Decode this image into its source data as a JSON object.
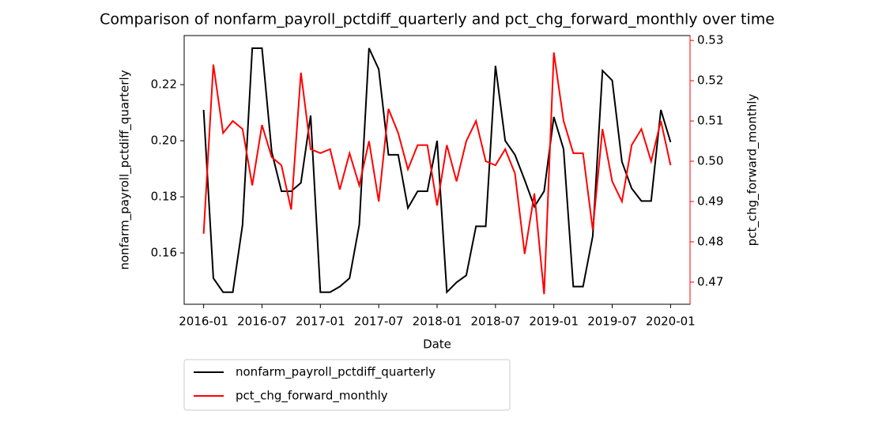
{
  "chart_data": {
    "type": "line",
    "title": "Comparison of nonfarm_payroll_pctdiff_quarterly and pct_chg_forward_monthly over time",
    "xlabel": "Date",
    "ylabel": "nonfarm_payroll_pctdiff_quarterly",
    "y2label": "pct_chg_forward_monthly",
    "x": [
      "2016-01",
      "2016-02",
      "2016-03",
      "2016-04",
      "2016-05",
      "2016-06",
      "2016-07",
      "2016-08",
      "2016-09",
      "2016-10",
      "2016-11",
      "2016-12",
      "2017-01",
      "2017-02",
      "2017-03",
      "2017-04",
      "2017-05",
      "2017-06",
      "2017-07",
      "2017-08",
      "2017-09",
      "2017-10",
      "2017-11",
      "2017-12",
      "2018-01",
      "2018-02",
      "2018-03",
      "2018-04",
      "2018-05",
      "2018-06",
      "2018-07",
      "2018-08",
      "2018-09",
      "2018-10",
      "2018-11",
      "2018-12",
      "2019-01",
      "2019-02",
      "2019-03",
      "2019-04",
      "2019-05",
      "2019-06",
      "2019-07",
      "2019-08",
      "2019-09",
      "2019-10",
      "2019-11",
      "2019-12",
      "2020-01"
    ],
    "xlim": [
      "2015-11",
      "2020-03"
    ],
    "xticks": [
      "2016-01",
      "2016-07",
      "2017-01",
      "2017-07",
      "2018-01",
      "2018-07",
      "2019-01",
      "2019-07",
      "2020-01"
    ],
    "ylim": [
      0.1417,
      0.2375
    ],
    "yticks": [
      0.16,
      0.18,
      {
        "value": 0.2,
        "label": "0.20"
      },
      0.22
    ],
    "y2lim": [
      0.4645,
      0.5312
    ],
    "y2ticks": [
      0.47,
      0.48,
      0.49,
      {
        "value": 0.5,
        "label": "0.50"
      },
      0.51,
      0.52,
      0.53
    ],
    "series": [
      {
        "name": "nonfarm_payroll_pctdiff_quarterly",
        "color": "#000000",
        "values": [
          0.211,
          0.151,
          0.146,
          0.146,
          0.17,
          0.233,
          0.233,
          0.196,
          0.182,
          0.182,
          0.185,
          0.209,
          0.146,
          0.146,
          0.148,
          0.151,
          0.17,
          0.233,
          0.2255,
          0.195,
          0.195,
          0.176,
          0.182,
          0.182,
          0.2,
          0.146,
          0.1495,
          0.152,
          0.1695,
          0.1695,
          0.2267,
          0.2,
          0.195,
          0.186,
          0.1765,
          0.182,
          0.2085,
          0.197,
          0.148,
          0.148,
          0.166,
          0.225,
          0.2215,
          0.1925,
          0.183,
          0.1785,
          0.1785,
          0.211,
          0.1995
        ]
      },
      {
        "name": "pct_chg_forward_monthly",
        "color": "#ff0000",
        "axis": "y2",
        "values": [
          0.482,
          0.524,
          0.507,
          0.51,
          0.508,
          0.494,
          0.509,
          0.501,
          0.499,
          0.488,
          0.522,
          0.503,
          0.502,
          0.503,
          0.493,
          0.502,
          0.494,
          0.505,
          0.49,
          0.513,
          0.507,
          0.498,
          0.504,
          0.504,
          0.489,
          0.504,
          0.495,
          0.505,
          0.51,
          0.5,
          0.499,
          0.503,
          0.497,
          0.477,
          0.492,
          0.467,
          0.527,
          0.51,
          0.502,
          0.502,
          0.483,
          0.508,
          0.495,
          0.49,
          0.504,
          0.508,
          0.5,
          0.51,
          0.499
        ]
      }
    ],
    "legend": "below"
  }
}
